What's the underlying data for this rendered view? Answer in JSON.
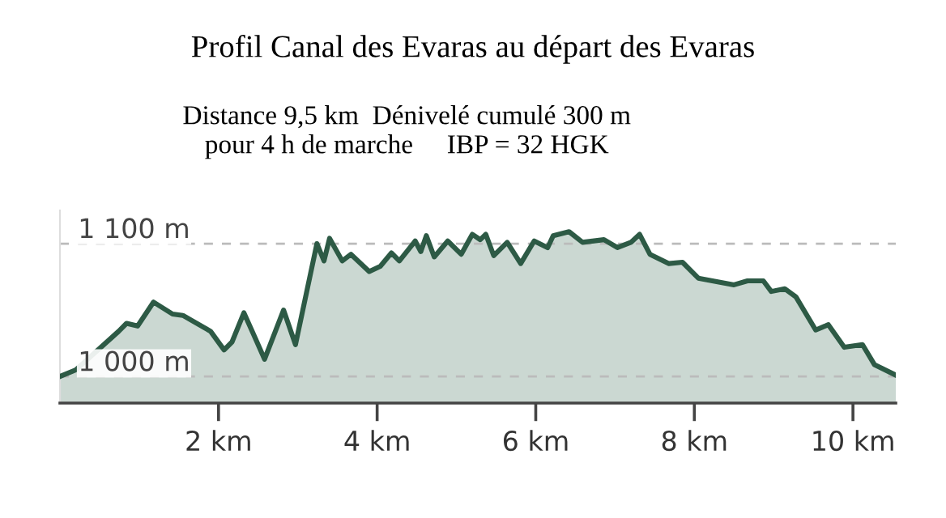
{
  "chart_data": {
    "type": "area",
    "title": "Profil Canal des Evaras au départ des Evaras",
    "subtitle": "Distance 9,5 km  Dénivelé cumulé 300 m\npour 4 h de marche     IBP = 32 HGK",
    "x": [
      0,
      0.2,
      0.74,
      0.84,
      0.98,
      1.18,
      1.42,
      1.55,
      1.9,
      2.07,
      2.17,
      2.32,
      2.44,
      2.58,
      2.82,
      2.97,
      3.24,
      3.33,
      3.4,
      3.56,
      3.67,
      3.9,
      4.04,
      4.18,
      4.28,
      4.48,
      4.55,
      4.62,
      4.72,
      4.89,
      5.06,
      5.2,
      5.3,
      5.37,
      5.47,
      5.64,
      5.81,
      5.98,
      6.15,
      6.22,
      6.42,
      6.59,
      6.86,
      7.03,
      7.2,
      7.31,
      7.44,
      7.68,
      7.85,
      8.05,
      8.5,
      8.67,
      8.87,
      8.97,
      9.14,
      9.28,
      9.53,
      9.69,
      9.89,
      10.12,
      10.27,
      10.54
    ],
    "series": [
      {
        "color": "#2d5a45",
        "values": [
          1000,
          1005,
          1034,
          1040,
          1038,
          1056,
          1047,
          1046,
          1034,
          1020,
          1026,
          1048,
          1032,
          1013,
          1050,
          1024,
          1100,
          1087,
          1104,
          1087,
          1092,
          1079,
          1083,
          1093,
          1087,
          1102,
          1094,
          1106,
          1090,
          1102,
          1092,
          1107,
          1103,
          1107,
          1091,
          1101,
          1085,
          1102,
          1097,
          1106,
          1109,
          1101,
          1103,
          1097,
          1101,
          1107,
          1092,
          1085,
          1086,
          1074,
          1069,
          1072,
          1072,
          1064,
          1066,
          1060,
          1035,
          1039,
          1022,
          1024,
          1009,
          1001
        ]
      }
    ],
    "xlim": [
      0,
      10.54
    ],
    "xticks": [
      {
        "value": 2,
        "label": "2 km"
      },
      {
        "value": 4,
        "label": "4 km"
      },
      {
        "value": 6,
        "label": "6 km"
      },
      {
        "value": 8,
        "label": "8 km"
      },
      {
        "value": 10,
        "label": "10 km"
      }
    ],
    "ylim": [
      980,
      1125
    ],
    "yticks": [
      {
        "value": 1000,
        "label": "1 000 m"
      },
      {
        "value": 1100,
        "label": "1 100 m"
      }
    ],
    "grid": "y",
    "marker": "none",
    "line_style": "solid"
  }
}
